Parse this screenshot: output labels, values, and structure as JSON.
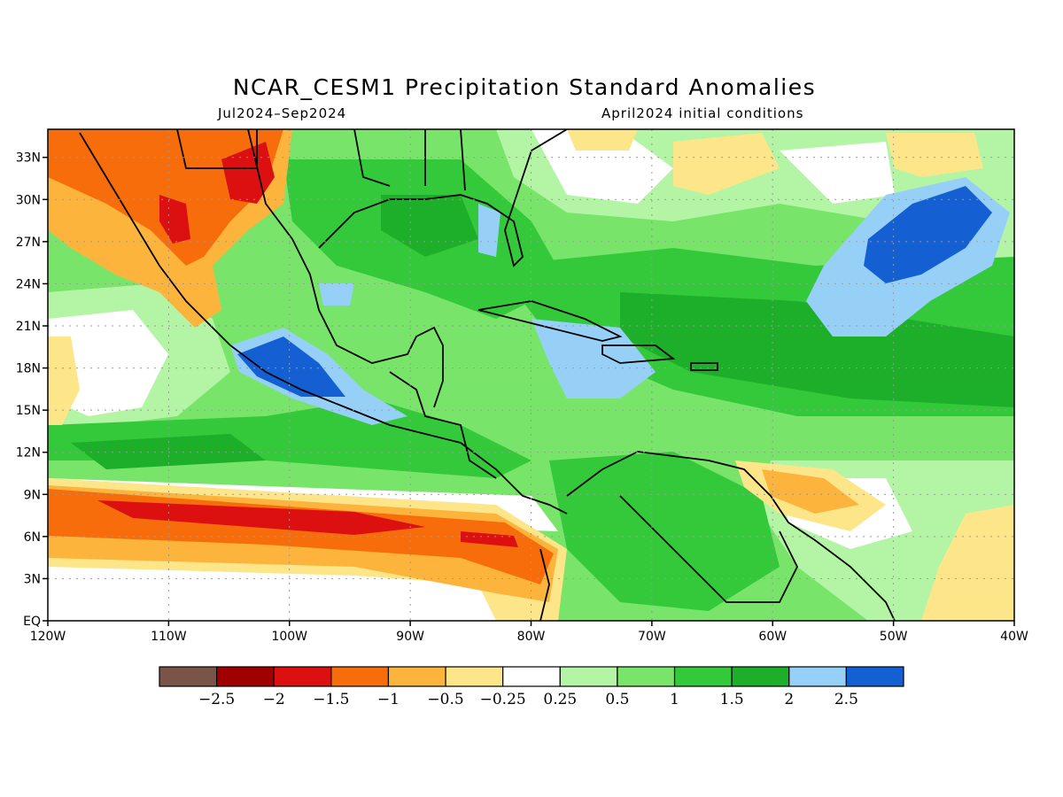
{
  "title": "NCAR_CESM1 Precipitation Standard Anomalies",
  "subtitle_left": "Jul2024–Sep2024",
  "subtitle_right": "April2024 initial conditions",
  "map": {
    "lon_range": [
      -120,
      -40
    ],
    "lat_range": [
      0,
      35
    ],
    "x_ticks": [
      "120W",
      "110W",
      "100W",
      "90W",
      "80W",
      "70W",
      "60W",
      "50W",
      "40W"
    ],
    "y_ticks": [
      "EQ",
      "3N",
      "6N",
      "9N",
      "12N",
      "15N",
      "18N",
      "21N",
      "24N",
      "27N",
      "30N",
      "33N"
    ],
    "gridlines": "dotted"
  },
  "colorbar": {
    "colors": [
      "#7a5447",
      "#a00000",
      "#dc1010",
      "#f76d0c",
      "#fdb43c",
      "#fde68a",
      "#ffffff",
      "#b4f5a5",
      "#78e56a",
      "#34c93a",
      "#1eaf2a",
      "#96d0f7",
      "#1460d2"
    ],
    "labels": [
      "−2.5",
      "−2",
      "−1.5",
      "−1",
      "−0.5",
      "−0.25",
      "0.25",
      "0.5",
      "1",
      "1.5",
      "2",
      "2.5"
    ]
  }
}
